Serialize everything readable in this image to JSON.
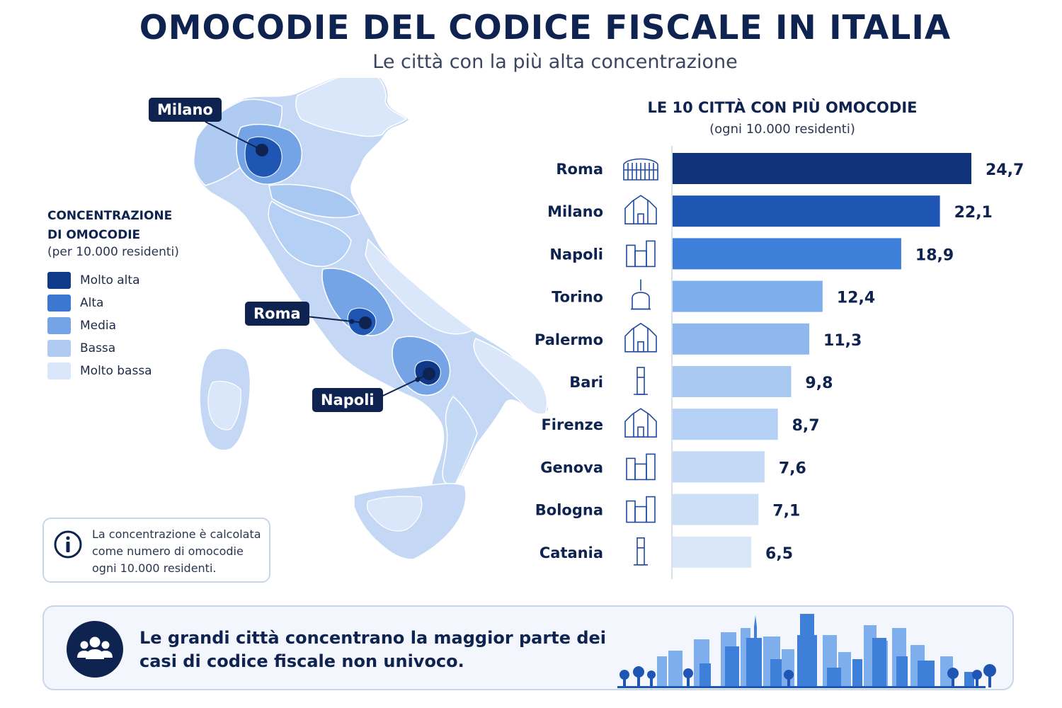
{
  "header": {
    "title": "OMOCODIE DEL CODICE FISCALE IN ITALIA",
    "subtitle": "Le città con la più alta concentrazione"
  },
  "legend": {
    "title_line1": "CONCENTRAZIONE",
    "title_line2": "DI OMOCODIE",
    "subtitle": "(per 10.000 residenti)",
    "items": [
      {
        "label": "Molto alta",
        "color": "#0f3a8a"
      },
      {
        "label": "Alta",
        "color": "#3c78d2"
      },
      {
        "label": "Media",
        "color": "#74a4e6"
      },
      {
        "label": "Bassa",
        "color": "#b0cbf2"
      },
      {
        "label": "Molto bassa",
        "color": "#dae7fa"
      }
    ]
  },
  "map": {
    "callouts": [
      {
        "label": "Milano"
      },
      {
        "label": "Roma"
      },
      {
        "label": "Napoli"
      }
    ]
  },
  "info_box": {
    "icon": "info-icon",
    "text": "La concentrazione è calcolata come numero di omocodie ogni 10.000 residenti."
  },
  "chart_data": {
    "type": "bar",
    "orientation": "horizontal",
    "title": "LE 10 CITTÀ CON PIÙ OMOCODIE",
    "subtitle": "(ogni 10.000 residenti)",
    "categories": [
      "Roma",
      "Milano",
      "Napoli",
      "Torino",
      "Palermo",
      "Bari",
      "Firenze",
      "Genova",
      "Bologna",
      "Catania"
    ],
    "values": [
      24.7,
      22.1,
      18.9,
      12.4,
      11.3,
      9.8,
      8.7,
      7.6,
      7.1,
      6.5
    ],
    "value_labels": [
      "24,7",
      "22,1",
      "18,9",
      "12,4",
      "11,3",
      "9,8",
      "8,7",
      "7,6",
      "7,1",
      "6,5"
    ],
    "bar_colors": [
      "#0f3278",
      "#1f56b4",
      "#3e7fd9",
      "#7eaeec",
      "#8fb8ee",
      "#a8c8f2",
      "#b4d0f4",
      "#c3d9f6",
      "#cddff7",
      "#d8e6f8"
    ],
    "icons": [
      "colosseum-icon",
      "duomo-milano-icon",
      "castel-napoli-icon",
      "mole-antonelliana-icon",
      "palermo-cathedral-icon",
      "bari-basilica-icon",
      "florence-duomo-icon",
      "lanterna-genova-icon",
      "two-towers-bologna-icon",
      "catania-gate-icon"
    ],
    "legend": "none",
    "grid": false
  },
  "footer": {
    "icon": "people-group-icon",
    "text": "Le grandi città concentrano la maggior parte dei casi di codice fiscale non univoco."
  }
}
